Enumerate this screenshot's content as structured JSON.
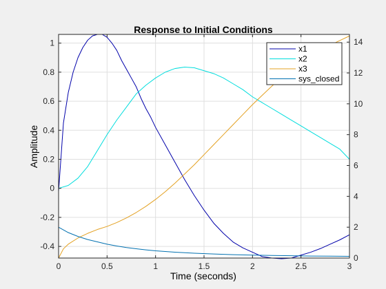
{
  "chart_data": {
    "type": "line",
    "title": "Response to Initial Conditions",
    "xlabel": "Time (seconds)",
    "ylabel": "Amplitude",
    "xlim": [
      0,
      3
    ],
    "ylim_left": [
      -0.48,
      1.06
    ],
    "ylim_right": [
      0,
      14.5
    ],
    "xticks": [
      "0",
      "0.5",
      "1",
      "1.5",
      "2",
      "2.5",
      "3"
    ],
    "yticks_left": [
      "-0.4",
      "-0.2",
      "0",
      "0.2",
      "0.4",
      "0.6",
      "0.8",
      "1"
    ],
    "yticks_right": [
      "0",
      "2",
      "4",
      "6",
      "8",
      "10",
      "12",
      "14"
    ],
    "grid": true,
    "legend_position": "top-right",
    "series": [
      {
        "name": "x1",
        "color": "#0000aa",
        "axis": "left",
        "points": [
          [
            0,
            -0.02
          ],
          [
            0.05,
            0.45
          ],
          [
            0.1,
            0.66
          ],
          [
            0.15,
            0.8
          ],
          [
            0.2,
            0.9
          ],
          [
            0.25,
            0.97
          ],
          [
            0.3,
            1.02
          ],
          [
            0.35,
            1.05
          ],
          [
            0.4,
            1.06
          ],
          [
            0.45,
            1.06
          ],
          [
            0.5,
            1.04
          ],
          [
            0.55,
            1.0
          ],
          [
            0.6,
            0.95
          ],
          [
            0.65,
            0.88
          ],
          [
            0.7,
            0.82
          ],
          [
            0.75,
            0.76
          ],
          [
            0.8,
            0.7
          ],
          [
            0.85,
            0.62
          ],
          [
            0.9,
            0.55
          ],
          [
            0.95,
            0.49
          ],
          [
            1.0,
            0.42
          ],
          [
            1.1,
            0.3
          ],
          [
            1.2,
            0.18
          ],
          [
            1.3,
            0.06
          ],
          [
            1.4,
            -0.05
          ],
          [
            1.5,
            -0.15
          ],
          [
            1.6,
            -0.24
          ],
          [
            1.7,
            -0.31
          ],
          [
            1.8,
            -0.37
          ],
          [
            1.9,
            -0.41
          ],
          [
            2.0,
            -0.44
          ],
          [
            2.1,
            -0.47
          ],
          [
            2.2,
            -0.48
          ],
          [
            2.3,
            -0.485
          ],
          [
            2.4,
            -0.48
          ],
          [
            2.5,
            -0.46
          ],
          [
            2.6,
            -0.44
          ],
          [
            2.7,
            -0.415
          ],
          [
            2.8,
            -0.385
          ],
          [
            2.9,
            -0.355
          ],
          [
            3.0,
            -0.32
          ]
        ]
      },
      {
        "name": "x2",
        "color": "#00dddd",
        "axis": "left",
        "points": [
          [
            0,
            0.0
          ],
          [
            0.1,
            0.02
          ],
          [
            0.2,
            0.07
          ],
          [
            0.3,
            0.15
          ],
          [
            0.4,
            0.26
          ],
          [
            0.5,
            0.37
          ],
          [
            0.6,
            0.47
          ],
          [
            0.7,
            0.56
          ],
          [
            0.8,
            0.65
          ],
          [
            0.9,
            0.71
          ],
          [
            1.0,
            0.76
          ],
          [
            1.1,
            0.8
          ],
          [
            1.2,
            0.825
          ],
          [
            1.3,
            0.835
          ],
          [
            1.4,
            0.83
          ],
          [
            1.5,
            0.81
          ],
          [
            1.6,
            0.79
          ],
          [
            1.7,
            0.76
          ],
          [
            1.8,
            0.72
          ],
          [
            1.9,
            0.68
          ],
          [
            2.0,
            0.63
          ],
          [
            2.1,
            0.59
          ],
          [
            2.2,
            0.55
          ],
          [
            2.3,
            0.51
          ],
          [
            2.4,
            0.47
          ],
          [
            2.5,
            0.43
          ],
          [
            2.6,
            0.39
          ],
          [
            2.7,
            0.35
          ],
          [
            2.8,
            0.31
          ],
          [
            2.9,
            0.27
          ],
          [
            3.0,
            0.2
          ]
        ]
      },
      {
        "name": "x3",
        "color": "#e3a020",
        "axis": "right",
        "points": [
          [
            0,
            0.0
          ],
          [
            0.05,
            0.6
          ],
          [
            0.1,
            0.9
          ],
          [
            0.2,
            1.3
          ],
          [
            0.3,
            1.6
          ],
          [
            0.4,
            1.85
          ],
          [
            0.5,
            2.05
          ],
          [
            0.6,
            2.3
          ],
          [
            0.7,
            2.6
          ],
          [
            0.8,
            2.95
          ],
          [
            0.9,
            3.35
          ],
          [
            1.0,
            3.8
          ],
          [
            1.1,
            4.3
          ],
          [
            1.2,
            4.85
          ],
          [
            1.3,
            5.45
          ],
          [
            1.4,
            6.05
          ],
          [
            1.5,
            6.7
          ],
          [
            1.6,
            7.35
          ],
          [
            1.7,
            8.0
          ],
          [
            1.8,
            8.65
          ],
          [
            1.9,
            9.3
          ],
          [
            2.0,
            9.95
          ],
          [
            2.1,
            10.55
          ],
          [
            2.2,
            11.15
          ],
          [
            2.3,
            11.7
          ],
          [
            2.4,
            12.2
          ],
          [
            2.5,
            12.65
          ],
          [
            2.6,
            13.05
          ],
          [
            2.7,
            13.45
          ],
          [
            2.8,
            13.8
          ],
          [
            2.9,
            14.1
          ],
          [
            3.0,
            14.4
          ]
        ]
      },
      {
        "name": "sys_closed",
        "color": "#0070b0",
        "axis": "right",
        "points": [
          [
            0,
            2.0
          ],
          [
            0.1,
            1.65
          ],
          [
            0.2,
            1.4
          ],
          [
            0.3,
            1.2
          ],
          [
            0.4,
            1.05
          ],
          [
            0.5,
            0.9
          ],
          [
            0.6,
            0.78
          ],
          [
            0.7,
            0.68
          ],
          [
            0.8,
            0.6
          ],
          [
            0.9,
            0.53
          ],
          [
            1.0,
            0.47
          ],
          [
            1.2,
            0.38
          ],
          [
            1.4,
            0.31
          ],
          [
            1.6,
            0.26
          ],
          [
            1.8,
            0.22
          ],
          [
            2.0,
            0.19
          ],
          [
            2.2,
            0.17
          ],
          [
            2.4,
            0.15
          ],
          [
            2.6,
            0.13
          ],
          [
            2.8,
            0.12
          ],
          [
            3.0,
            0.11
          ]
        ]
      }
    ]
  }
}
